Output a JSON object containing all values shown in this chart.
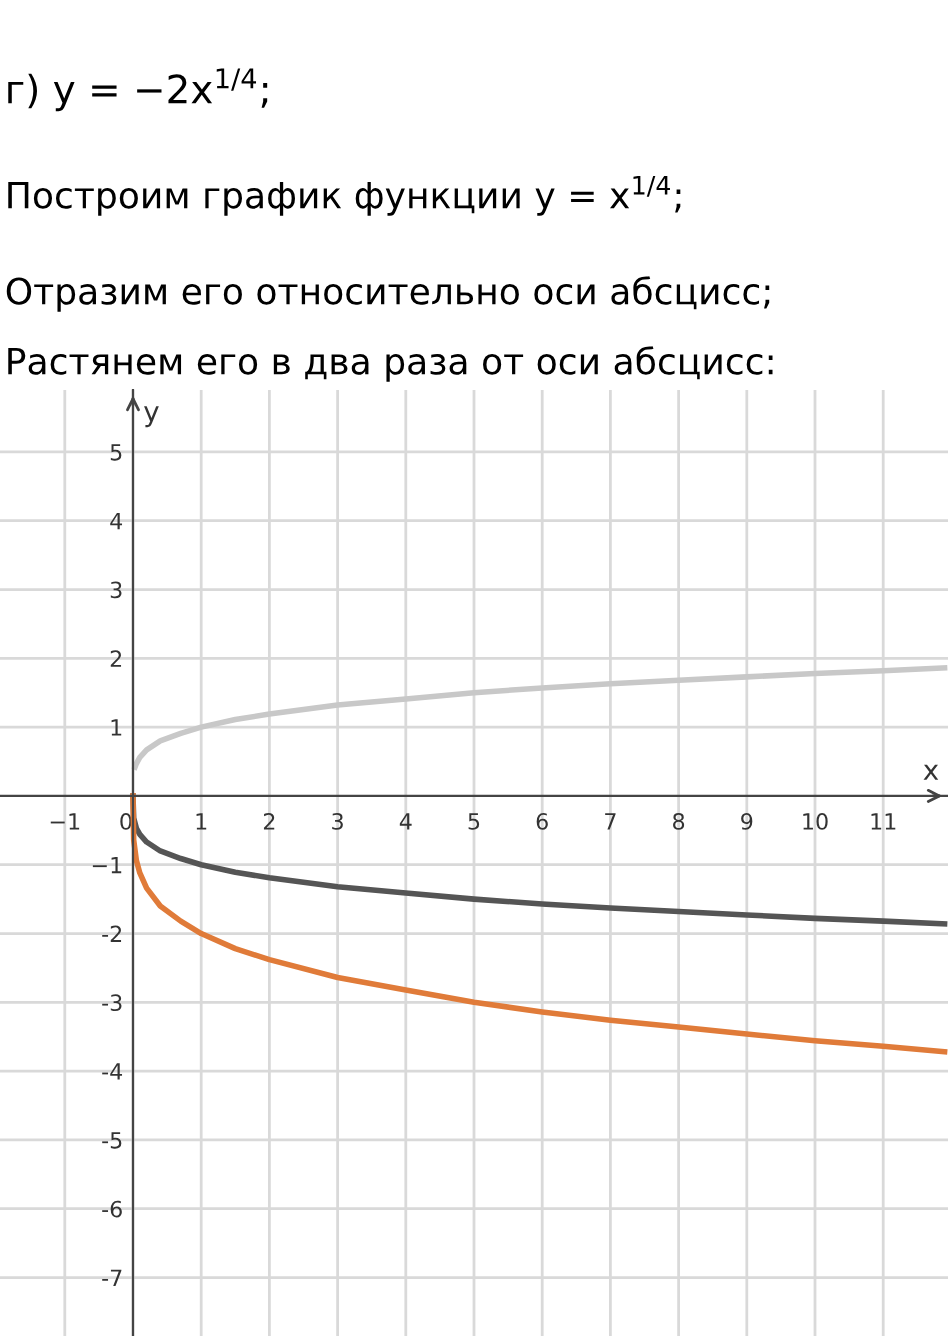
{
  "chart_data": {
    "type": "line",
    "title": "г) y = −2x$^{1/4}$;",
    "annotations": [
      "Построим график функции y = x$^{1/4}$;",
      "Отразим его относительно оси абсцисс;",
      "Растянем его в два раза от оси абсцисс:"
    ],
    "xlabel": "x",
    "ylabel": "y",
    "x": [
      0,
      0.01,
      0.05,
      0.1,
      0.2,
      0.4,
      0.7,
      1,
      1.5,
      2,
      3,
      4,
      5,
      6,
      7,
      8,
      9,
      10,
      11,
      11.9
    ],
    "series": [
      {
        "color": "#c8c8c8",
        "x": [
          0.03,
          0.05,
          0.1,
          0.2,
          0.4,
          0.7,
          1,
          1.5,
          2,
          3,
          4,
          5,
          6,
          7,
          8,
          9,
          10,
          11,
          11.9
        ],
        "values": [
          0.42,
          0.47,
          0.56,
          0.67,
          0.8,
          0.91,
          1,
          1.11,
          1.19,
          1.32,
          1.41,
          1.5,
          1.57,
          1.63,
          1.68,
          1.73,
          1.78,
          1.82,
          1.86
        ]
      },
      {
        "color": "#555555",
        "values": [
          0,
          -0.32,
          -0.47,
          -0.56,
          -0.67,
          -0.8,
          -0.91,
          -1,
          -1.11,
          -1.19,
          -1.32,
          -1.41,
          -1.5,
          -1.57,
          -1.63,
          -1.68,
          -1.73,
          -1.78,
          -1.82,
          -1.86
        ]
      },
      {
        "color": "#e07b39",
        "values": [
          0,
          -0.64,
          -0.94,
          -1.12,
          -1.34,
          -1.6,
          -1.82,
          -2,
          -2.22,
          -2.38,
          -2.64,
          -2.82,
          -3,
          -3.14,
          -3.26,
          -3.36,
          -3.46,
          -3.56,
          -3.64,
          -3.72
        ]
      }
    ],
    "xlim": [
      -1.95,
      11.95
    ],
    "ylim": [
      -7.85,
      5.9
    ],
    "xticks": [
      {
        "value": -1,
        "label": "−1"
      },
      0,
      1,
      2,
      3,
      4,
      5,
      6,
      7,
      8,
      9,
      10,
      11
    ],
    "yticks": [
      {
        "value": -7,
        "label": "-7"
      },
      {
        "value": -6,
        "label": "-6"
      },
      {
        "value": -5,
        "label": "-5"
      },
      {
        "value": -4,
        "label": "-4"
      },
      {
        "value": -3,
        "label": "-3"
      },
      {
        "value": -2,
        "label": "-2"
      },
      {
        "value": -1,
        "label": "−1"
      },
      1,
      2,
      3,
      4,
      5
    ],
    "grid": true,
    "marker": "none",
    "line_style": "solid"
  }
}
